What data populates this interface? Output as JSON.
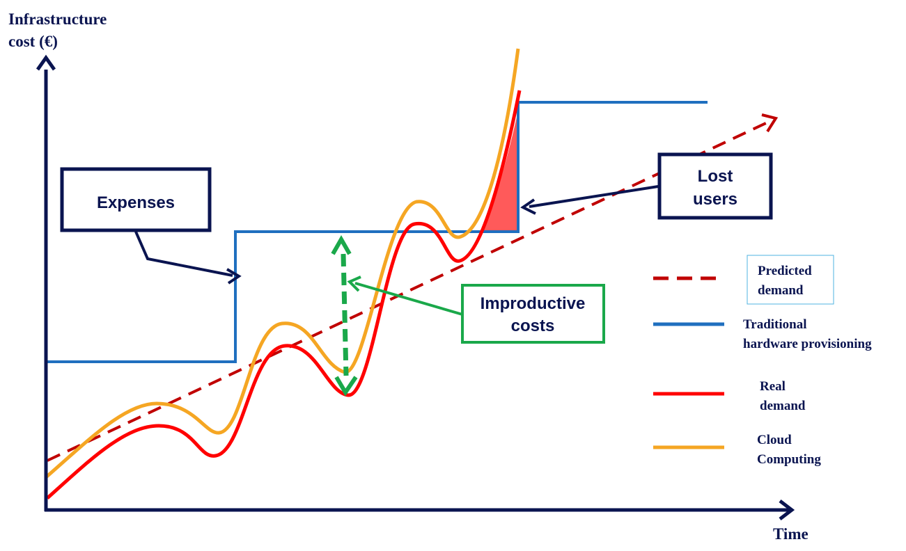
{
  "axes": {
    "y_title_line1": "Infrastructure",
    "y_title_line2": "cost (€)",
    "x_title": "Time"
  },
  "callouts": {
    "expenses": "Expenses",
    "lost_users_line1": "Lost",
    "lost_users_line2": "users",
    "improductive_line1": "Improductive",
    "improductive_line2": "costs"
  },
  "legend": [
    {
      "id": "predicted",
      "line1": "Predicted",
      "line2": "demand",
      "color": "#c00000",
      "style": "dashed"
    },
    {
      "id": "traditional",
      "line1": "Traditional",
      "line2": "hardware provisioning",
      "color": "#1f6fbf",
      "style": "solid"
    },
    {
      "id": "real",
      "line1": "Real",
      "line2": "demand",
      "color": "#ff0000",
      "style": "solid"
    },
    {
      "id": "cloud",
      "line1": "Cloud",
      "line2": "Computing",
      "color": "#f5a623",
      "style": "solid"
    }
  ],
  "colors": {
    "axis": "#0a1450",
    "box_border": "#0a1450",
    "improductive_border": "#1aa84a",
    "improductive_arrow": "#1aa84a",
    "lost_area": "#ff5a5a"
  }
}
